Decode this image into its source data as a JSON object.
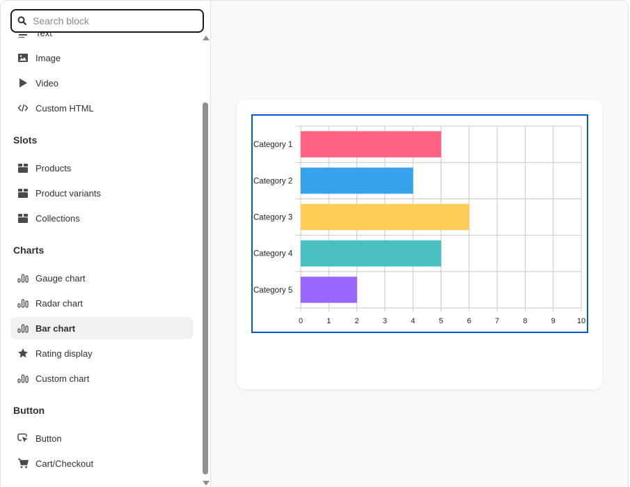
{
  "search": {
    "placeholder": "Search block",
    "value": ""
  },
  "sidebar": {
    "partial_item": {
      "label": "Text",
      "icon": "text-icon"
    },
    "groups": [
      {
        "items": [
          {
            "label": "Image",
            "icon": "image-icon"
          },
          {
            "label": "Video",
            "icon": "play-icon"
          },
          {
            "label": "Custom HTML",
            "icon": "code-icon"
          }
        ]
      },
      {
        "title": "Slots",
        "items": [
          {
            "label": "Products",
            "icon": "box-icon"
          },
          {
            "label": "Product variants",
            "icon": "box-icon"
          },
          {
            "label": "Collections",
            "icon": "box-icon"
          }
        ]
      },
      {
        "title": "Charts",
        "items": [
          {
            "label": "Gauge chart",
            "icon": "chart-icon"
          },
          {
            "label": "Radar chart",
            "icon": "chart-icon"
          },
          {
            "label": "Bar chart",
            "icon": "chart-icon",
            "selected": true
          },
          {
            "label": "Rating display",
            "icon": "star-icon"
          },
          {
            "label": "Custom chart",
            "icon": "chart-icon"
          }
        ]
      },
      {
        "title": "Button",
        "items": [
          {
            "label": "Button",
            "icon": "cursor-icon"
          },
          {
            "label": "Cart/Checkout",
            "icon": "cart-icon"
          }
        ]
      }
    ]
  },
  "colors": {
    "accent": "#005bd3",
    "selected_bg": "#f1f1f1"
  },
  "chart_data": {
    "type": "bar",
    "orientation": "horizontal",
    "categories": [
      "Category 1",
      "Category 2",
      "Category 3",
      "Category 4",
      "Category 5"
    ],
    "values": [
      5,
      4,
      6,
      5,
      2
    ],
    "colors": [
      "#ff6384",
      "#36a2eb",
      "#ffcd56",
      "#4bc0c0",
      "#9966ff"
    ],
    "xlim": [
      0,
      10
    ],
    "xticks": [
      "0",
      "1",
      "2",
      "3",
      "4",
      "5",
      "6",
      "7",
      "8",
      "9",
      "10"
    ],
    "grid": true,
    "legend": "none"
  }
}
